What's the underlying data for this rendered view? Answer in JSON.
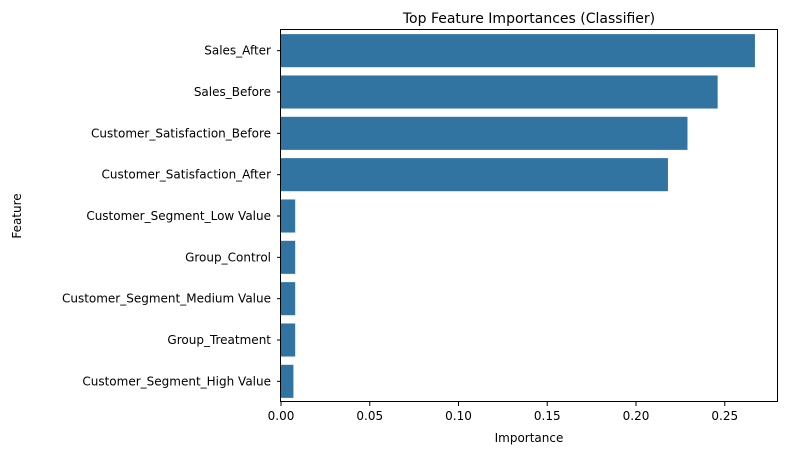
{
  "chart_data": {
    "type": "bar",
    "orientation": "horizontal",
    "title": "Top Feature Importances (Classifier)",
    "xlabel": "Importance",
    "ylabel": "Feature",
    "xlim": [
      0,
      0.28
    ],
    "xticks": [
      0.0,
      0.05,
      0.1,
      0.15,
      0.2,
      0.25
    ],
    "xtick_labels": [
      "0.00",
      "0.05",
      "0.10",
      "0.15",
      "0.20",
      "0.25"
    ],
    "categories": [
      "Sales_After",
      "Sales_Before",
      "Customer_Satisfaction_Before",
      "Customer_Satisfaction_After",
      "Customer_Segment_Low Value",
      "Group_Control",
      "Customer_Segment_Medium Value",
      "Group_Treatment",
      "Customer_Segment_High Value"
    ],
    "values": [
      0.267,
      0.246,
      0.229,
      0.218,
      0.008,
      0.008,
      0.008,
      0.008,
      0.007
    ],
    "bar_color": "#3274a1",
    "grid": false
  }
}
